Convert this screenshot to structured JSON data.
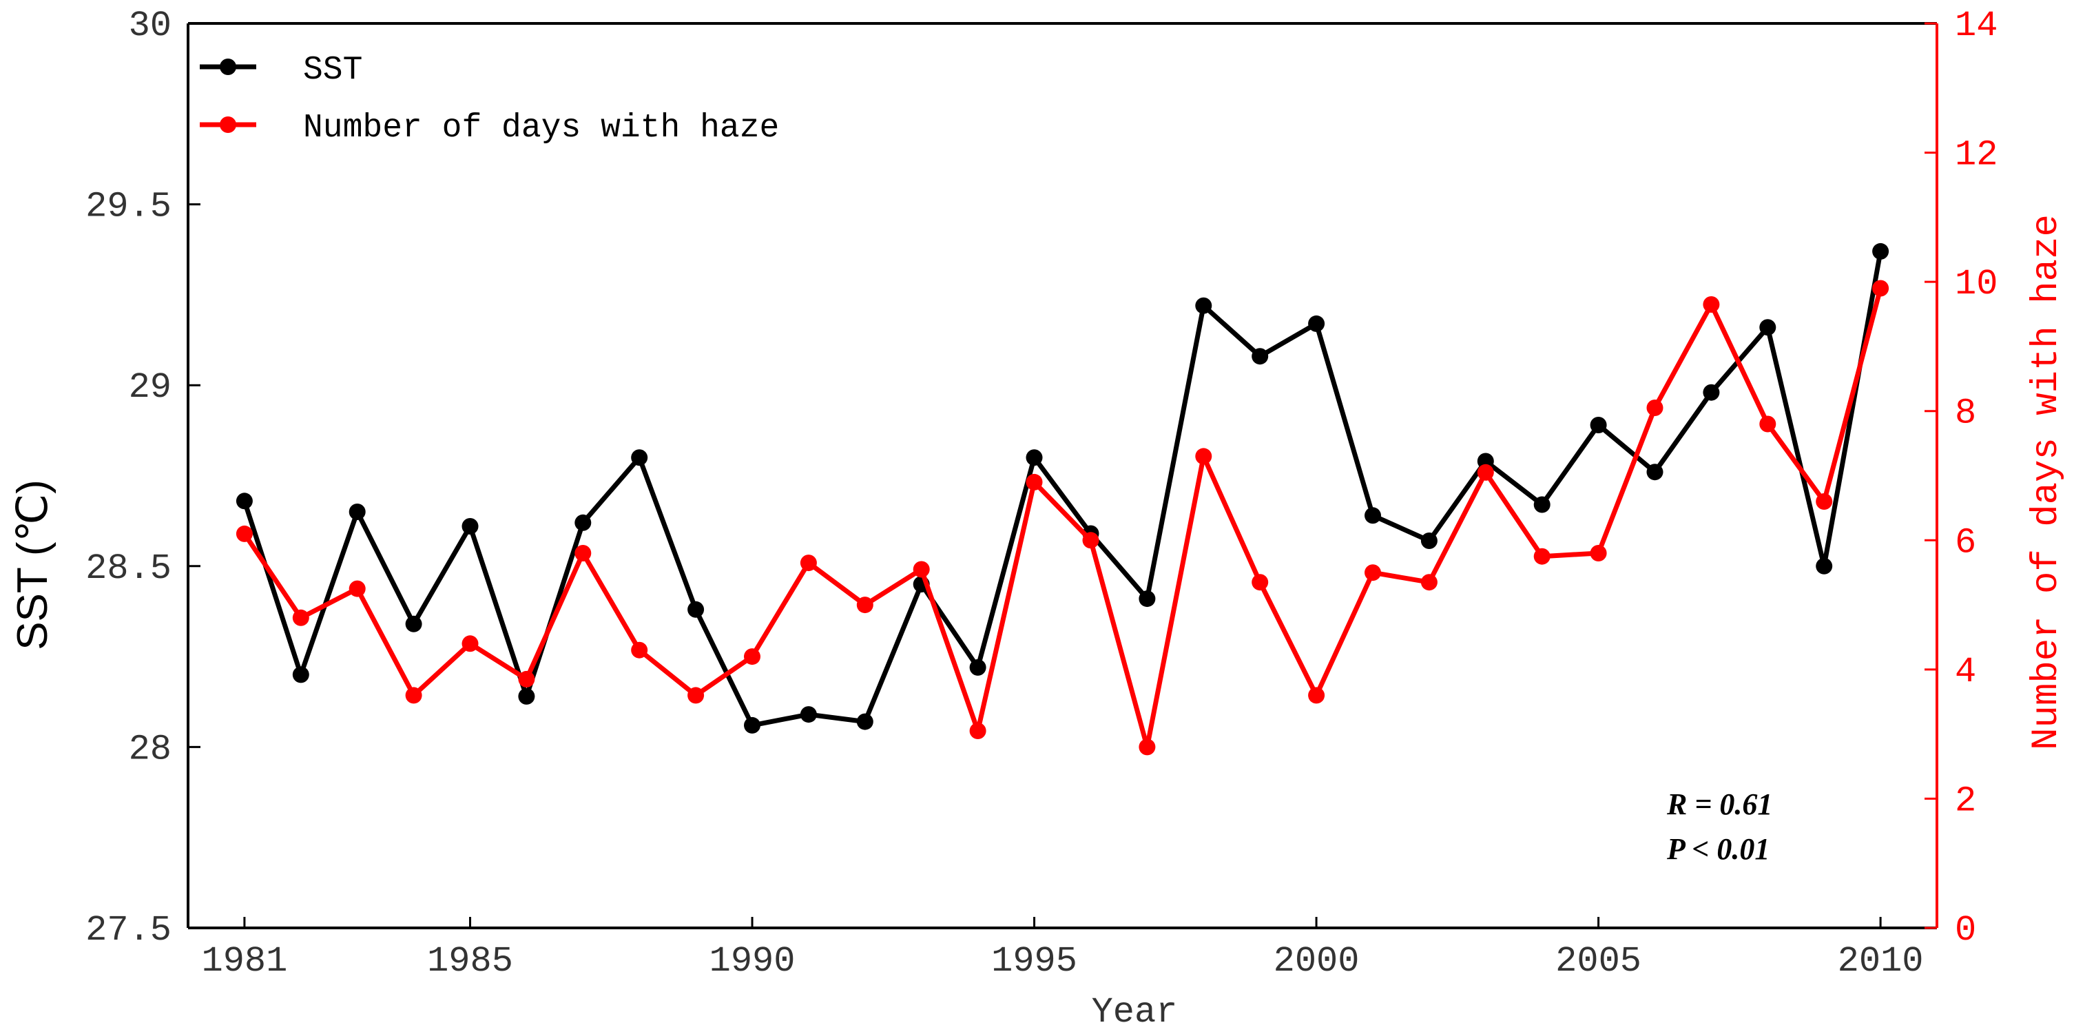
{
  "chart_data": {
    "type": "line",
    "x": [
      1981,
      1982,
      1983,
      1984,
      1985,
      1986,
      1987,
      1988,
      1989,
      1990,
      1991,
      1992,
      1993,
      1994,
      1995,
      1996,
      1997,
      1998,
      1999,
      2000,
      2001,
      2002,
      2003,
      2004,
      2005,
      2006,
      2007,
      2008,
      2009,
      2010
    ],
    "xlabel": "Year",
    "xlim": [
      1980,
      2011
    ],
    "x_ticks": [
      "1981",
      "1985",
      "1990",
      "1995",
      "2000",
      "2005",
      "2010"
    ],
    "y_left": {
      "label": "SST (℃)",
      "lim": [
        27.5,
        30
      ],
      "ticks": [
        "27.5",
        "28",
        "28.5",
        "29",
        "29.5",
        "30"
      ]
    },
    "y_right": {
      "label": "Number of days with haze",
      "lim": [
        0,
        14
      ],
      "ticks": [
        "0",
        "2",
        "4",
        "6",
        "8",
        "10",
        "12",
        "14"
      ],
      "color": "#ff0000"
    },
    "series": [
      {
        "name": "SST",
        "axis": "left",
        "color": "#000000",
        "values": [
          28.68,
          28.2,
          28.65,
          28.34,
          28.61,
          28.14,
          28.62,
          28.8,
          28.38,
          28.06,
          28.09,
          28.07,
          28.45,
          28.22,
          28.8,
          28.59,
          28.41,
          29.22,
          29.08,
          29.17,
          28.64,
          28.57,
          28.79,
          28.67,
          28.89,
          28.76,
          28.98,
          29.16,
          28.5,
          29.37
        ]
      },
      {
        "name": "Number of days with haze",
        "axis": "right",
        "color": "#ff0000",
        "values": [
          6.1,
          4.8,
          5.25,
          3.6,
          4.4,
          3.85,
          5.8,
          4.3,
          3.6,
          4.2,
          5.65,
          5.0,
          5.55,
          3.05,
          6.9,
          6.0,
          2.8,
          7.3,
          5.35,
          3.6,
          5.5,
          5.35,
          7.05,
          5.75,
          5.8,
          8.05,
          9.65,
          7.8,
          6.6,
          9.9
        ]
      }
    ],
    "legend": {
      "placement": "top-left"
    },
    "annotations": [
      "R = 0.61",
      "P < 0.01"
    ],
    "grid": false
  }
}
